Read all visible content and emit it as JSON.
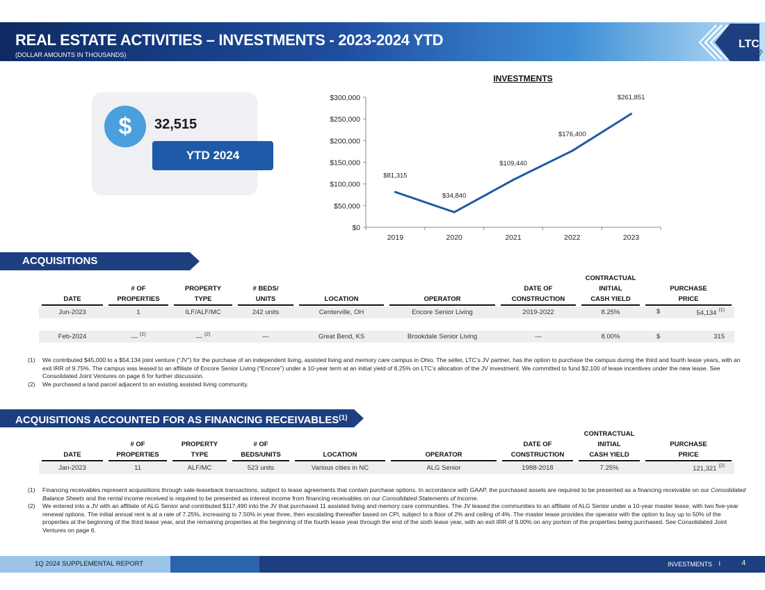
{
  "header": {
    "title": "REAL ESTATE ACTIVITIES – INVESTMENTS - 2023-2024 YTD",
    "subtitle": "(DOLLAR AMOUNTS IN THOUSANDS)",
    "logo_text": "LTC",
    "logo_sub": "REIT"
  },
  "kpi": {
    "icon": "dollar-icon",
    "symbol": "$",
    "value": "32,515",
    "label": "YTD 2024"
  },
  "chart_data": {
    "type": "line",
    "title": "INVESTMENTS",
    "categories": [
      "2019",
      "2020",
      "2021",
      "2022",
      "2023"
    ],
    "values": [
      81315,
      34840,
      109440,
      176400,
      261851
    ],
    "data_labels": [
      "$81,315",
      "$34,840",
      "$109,440",
      "$176,400",
      "$261,851"
    ],
    "y_ticks": [
      0,
      50000,
      100000,
      150000,
      200000,
      250000,
      300000
    ],
    "y_tick_labels": [
      "$0",
      "$50,000",
      "$100,000",
      "$150,000",
      "$200,000",
      "$250,000",
      "$300,000"
    ],
    "ylim": [
      0,
      300000
    ],
    "line_color": "#1e5aa8",
    "xlabel": "",
    "ylabel": ""
  },
  "acquisitions": {
    "title": "ACQUISITIONS",
    "headers": {
      "date": [
        "DATE"
      ],
      "properties": [
        "# OF",
        "PROPERTIES"
      ],
      "type": [
        "PROPERTY",
        "TYPE"
      ],
      "beds": [
        "# BEDS/",
        "UNITS"
      ],
      "location": [
        "LOCATION"
      ],
      "operator": [
        "OPERATOR"
      ],
      "construction": [
        "DATE OF",
        "CONSTRUCTION"
      ],
      "yield": [
        "CONTRACTUAL",
        "INITIAL",
        "CASH YIELD"
      ],
      "price": [
        "PURCHASE",
        "PRICE"
      ]
    },
    "rows": [
      {
        "date": "Jun-2023",
        "properties": "1",
        "properties_note": "",
        "type": "ILF/ALF/MC",
        "type_note": "",
        "beds": "242 units",
        "location": "Centerville, OH",
        "operator": "Encore Senior Living",
        "construction": "2019-2022",
        "yield": "8.25%",
        "currency": "$",
        "price": "54,134",
        "price_note": "(1)"
      },
      {
        "date": "Feb-2024",
        "properties": "—",
        "properties_note": "(2)",
        "type": "—",
        "type_note": "(2)",
        "beds": "—",
        "location": "Great Bend, KS",
        "operator": "Brookdale Senior Living",
        "construction": "—",
        "yield": "8.00%",
        "currency": "$",
        "price": "315",
        "price_note": ""
      }
    ],
    "footnotes": [
      {
        "num": "(1)",
        "text": "We contributed $45,000 to a $54,134 joint venture (“JV”) for the purchase of an independent living, assisted living and memory care campus in Ohio. The seller, LTC’s JV partner, has the option to purchase the campus during the third and fourth lease years, with an exit IRR of 9.75%. The campus was leased to an affiliate of Encore Senior Living (“Encore”) under a 10-year term at an initial yield of 8.25% on LTC’s allocation of the JV investment. We committed to fund $2,100 of lease incentives under the new lease. See Consolidated Joint Ventures on page 6 for further discussion."
      },
      {
        "num": "(2)",
        "text": "We purchased a land parcel adjacent to an existing assisted living community."
      }
    ]
  },
  "financing": {
    "title": "ACQUISITIONS ACCOUNTED FOR AS FINANCING RECEIVABLES",
    "title_note": "(1)",
    "headers": {
      "date": [
        "DATE"
      ],
      "properties": [
        "# OF",
        "PROPERTIES"
      ],
      "type": [
        "PROPERTY",
        "TYPE"
      ],
      "beds": [
        "# OF",
        "BEDS/UNITS"
      ],
      "location": [
        "LOCATION"
      ],
      "operator": [
        "OPERATOR"
      ],
      "construction": [
        "DATE OF",
        "CONSTRUCTION"
      ],
      "yield": [
        "CONTRACTUAL",
        "INITIAL",
        "CASH YIELD"
      ],
      "price": [
        "PURCHASE",
        "PRICE"
      ]
    },
    "rows": [
      {
        "date": "Jan-2023",
        "properties": "11",
        "type": "ALF/MC",
        "beds": "523 units",
        "location": "Various cities in NC",
        "operator": "ALG Senior",
        "construction": "1988-2018",
        "yield": "7.25%",
        "price": "121,321",
        "price_note": "(2)"
      }
    ],
    "footnotes": [
      {
        "num": "(1)",
        "parts": [
          {
            "t": "Financing receivables represent acquisitions through sale-leaseback transactions, subject to lease agreements that contain purchase options. In accordance with GAAP, the purchased assets are required to be presented as a financing receivable on our ",
            "i": false
          },
          {
            "t": "Consolidated Balance Sheets",
            "i": true
          },
          {
            "t": " and the rental income received is required to be presented as interest income from financing receivables on our ",
            "i": false
          },
          {
            "t": "Consolidated Statements of Income",
            "i": true
          },
          {
            "t": ".",
            "i": false
          }
        ]
      },
      {
        "num": "(2)",
        "parts": [
          {
            "t": "We entered into a JV with an affiliate of ALG Senior and contributed $117,490 into the JV that purchased 11 assisted living and memory care communities. The JV leased the communities to an affiliate of ALG Senior under a 10-year master lease, with two five-year renewal options. The initial annual rent is at a rate of 7.25%, increasing to 7.50% in year three, then escalating thereafter based on CPI, subject to a floor of 2% and ceiling of 4%. The master lease provides the operator with the option to buy up to 50% of the properties at the beginning of the third lease year, and the remaining properties at the beginning of the fourth lease year through the end of the sixth lease year, with an exit IRR of 9.00% on any portion of the properties being purchased. See Consolidated Joint Ventures on page 6.",
            "i": false
          }
        ]
      }
    ]
  },
  "footer": {
    "report": "1Q 2024 SUPPLEMENTAL REPORT",
    "section": "INVESTMENTS",
    "separator": "I",
    "page": "4"
  },
  "colors": {
    "navy": "#1d3f80",
    "accent": "#1e5aa8",
    "light_blue": "#4aa0dc",
    "row_shade": "#eeeeee"
  }
}
